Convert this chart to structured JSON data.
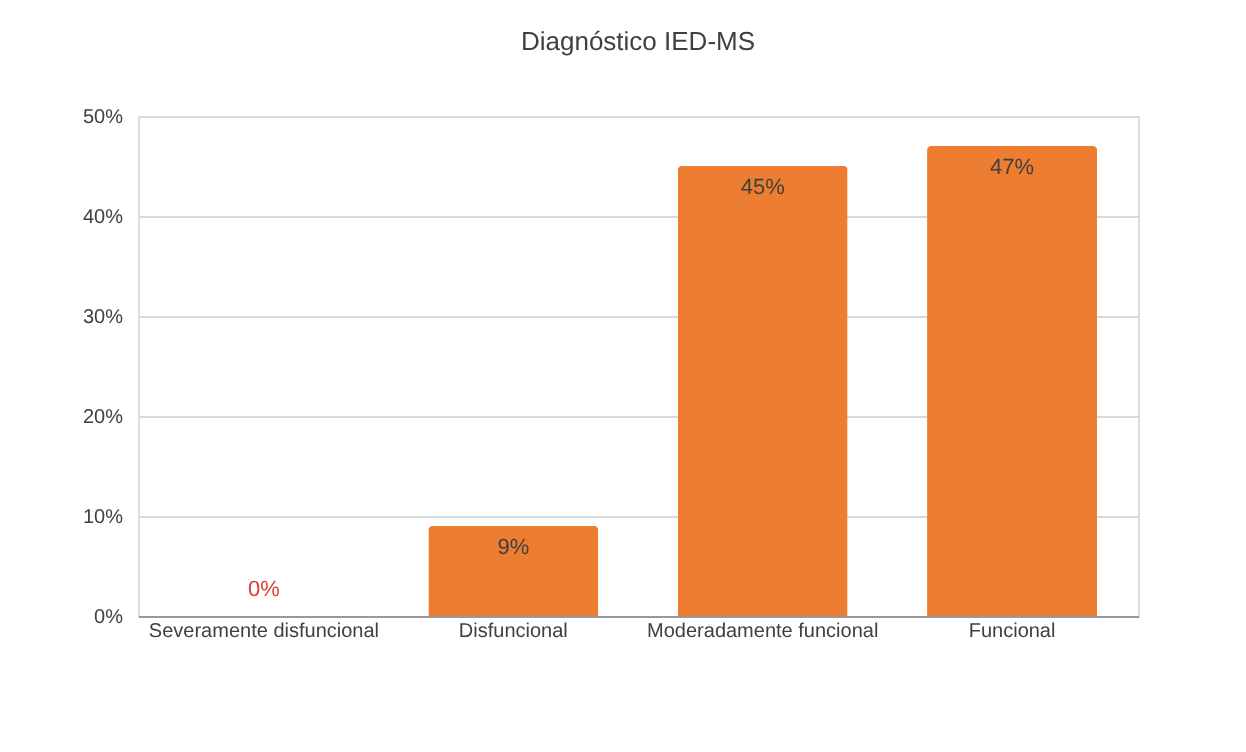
{
  "chart_data": {
    "type": "bar",
    "title": "Diagnóstico IED-MS",
    "categories": [
      "Severamente disfuncional",
      "Disfuncional",
      "Moderadamente funcional",
      "Funcional"
    ],
    "values": [
      0,
      9,
      45,
      47
    ],
    "value_labels": [
      "0%",
      "9%",
      "45%",
      "47%"
    ],
    "color": "#ed7d31",
    "ylim": [
      0,
      50
    ],
    "yticks": [
      {
        "value": 0,
        "label": "0%"
      },
      {
        "value": 10,
        "label": "10%"
      },
      {
        "value": 20,
        "label": "20%"
      },
      {
        "value": 30,
        "label": "30%"
      },
      {
        "value": 40,
        "label": "40%"
      },
      {
        "value": 50,
        "label": "50%"
      }
    ],
    "grid": "y"
  }
}
